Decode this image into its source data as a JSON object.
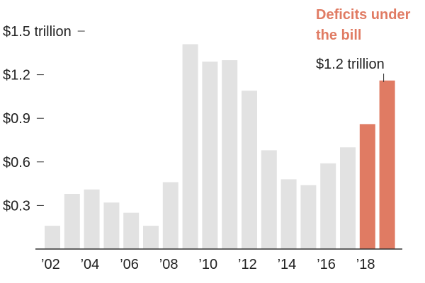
{
  "chart_data": {
    "type": "bar",
    "categories": [
      "2002",
      "2003",
      "2004",
      "2005",
      "2006",
      "2007",
      "2008",
      "2009",
      "2010",
      "2011",
      "2012",
      "2013",
      "2014",
      "2015",
      "2016",
      "2017",
      "2018",
      "2019"
    ],
    "values": [
      0.16,
      0.38,
      0.41,
      0.32,
      0.25,
      0.16,
      0.46,
      1.41,
      1.29,
      1.3,
      1.09,
      0.68,
      0.48,
      0.44,
      0.59,
      0.7,
      0.86,
      1.16
    ],
    "highlighted": [
      false,
      false,
      false,
      false,
      false,
      false,
      false,
      false,
      false,
      false,
      false,
      false,
      false,
      false,
      false,
      false,
      true,
      true
    ],
    "ylim": [
      0,
      1.5
    ],
    "yticks": [
      {
        "value": 0.3,
        "label": "$0.3"
      },
      {
        "value": 0.6,
        "label": "$0.6"
      },
      {
        "value": 0.9,
        "label": "$0.9"
      },
      {
        "value": 1.2,
        "label": "$1.2"
      },
      {
        "value": 1.5,
        "label": "$1.5 trillion"
      }
    ],
    "xticks": [
      {
        "category": "2002",
        "label": "’02"
      },
      {
        "category": "2004",
        "label": "’04"
      },
      {
        "category": "2006",
        "label": "’06"
      },
      {
        "category": "2008",
        "label": "’08"
      },
      {
        "category": "2010",
        "label": "’10"
      },
      {
        "category": "2012",
        "label": "’12"
      },
      {
        "category": "2014",
        "label": "’14"
      },
      {
        "category": "2016",
        "label": "’16"
      },
      {
        "category": "2018",
        "label": "’18"
      }
    ],
    "annotations": {
      "title_line1": "Deficits under",
      "title_line2": "the bill",
      "value_label": "$1.2 trillion",
      "value_target": "2019"
    }
  },
  "colors": {
    "base_bar": "#e2e2e2",
    "highlight_bar": "#e07b63",
    "annotation_title": "#e07b63",
    "text": "#222222",
    "axis": "#333333"
  }
}
